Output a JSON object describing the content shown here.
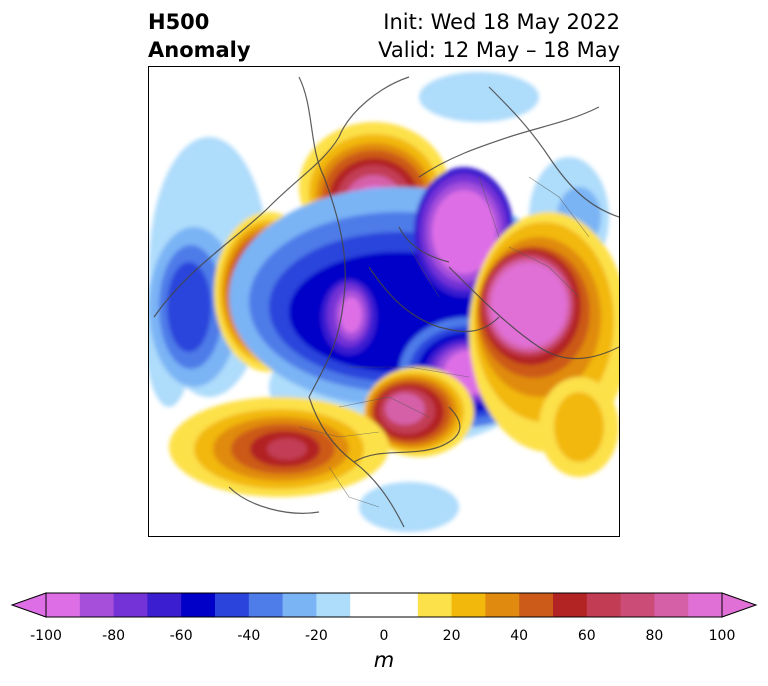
{
  "header": {
    "title_line1": "H500",
    "title_line2": "Anomaly",
    "init": "Init: Wed 18 May 2022",
    "valid": "Valid: 12 May – 18 May"
  },
  "colorbar": {
    "unit": "m",
    "ticks": [
      "-100",
      "-80",
      "-60",
      "-40",
      "-20",
      "0",
      "20",
      "40",
      "60",
      "80",
      "100"
    ],
    "colors": [
      "#dd6ee6",
      "#a64fdb",
      "#7333d6",
      "#3a1ecf",
      "#0000c8",
      "#2a44dc",
      "#4e7ce8",
      "#7ab4f5",
      "#aedcfb",
      "#ffffff",
      "#ffffff",
      "#fde14a",
      "#f2b80c",
      "#e08b10",
      "#cc5a18",
      "#b22424",
      "#c23c54",
      "#cc4c78",
      "#d660a8",
      "#e070d6"
    ]
  }
}
